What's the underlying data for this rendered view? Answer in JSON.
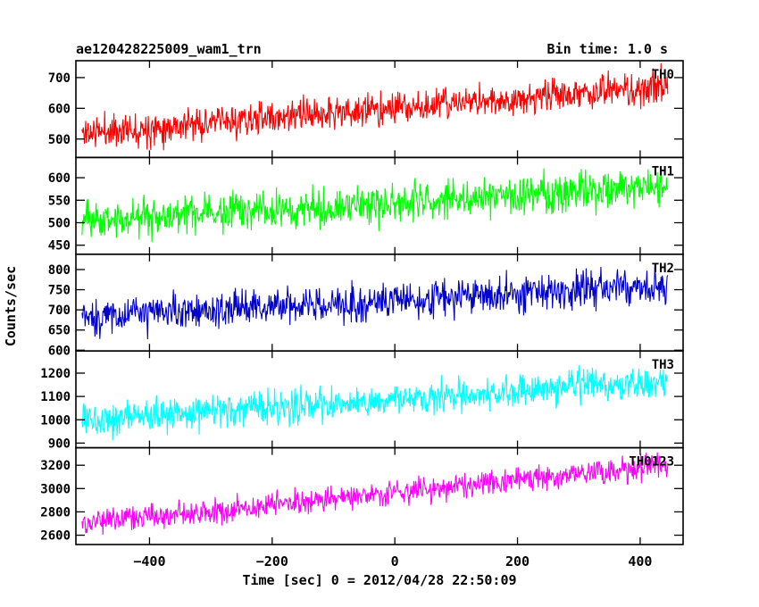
{
  "header": {
    "title": "ae120428225009_wam1_trn",
    "bin_time": "Bin time: 1.0 s"
  },
  "chart_data": {
    "type": "line",
    "xlabel": "Time [sec] 0 = 2012/04/28 22:50:09",
    "ylabel": "Counts/sec",
    "xlim": [
      -520,
      470
    ],
    "x_range_data": [
      -510,
      445
    ],
    "x_step": 1.0,
    "x_ticks": [
      -400,
      -200,
      0,
      200,
      400
    ],
    "x_tick_labels": [
      "−400",
      "−200",
      "0",
      "200",
      "400"
    ],
    "panels": [
      {
        "name": "TH0",
        "color": "#ff0000",
        "ylim": [
          440,
          755
        ],
        "y_ticks": [
          500,
          600,
          700
        ],
        "y_tick_labels": [
          "500",
          "600",
          "700"
        ],
        "trend_start": 520,
        "trend_end": 670,
        "noise": 38,
        "seed": 11
      },
      {
        "name": "TH1",
        "color": "#00ff00",
        "ylim": [
          430,
          645
        ],
        "y_ticks": [
          450,
          500,
          550,
          600
        ],
        "y_tick_labels": [
          "450",
          "500",
          "550",
          "600"
        ],
        "trend_start": 505,
        "trend_end": 580,
        "noise": 30,
        "seed": 23
      },
      {
        "name": "TH2",
        "color": "#0000cc",
        "ylim": [
          598,
          838
        ],
        "y_ticks": [
          600,
          650,
          700,
          750,
          800
        ],
        "y_tick_labels": [
          "600",
          "650",
          "700",
          "750",
          "800"
        ],
        "trend_start": 682,
        "trend_end": 760,
        "noise": 32,
        "seed": 37
      },
      {
        "name": "TH3",
        "color": "#00ffff",
        "ylim": [
          880,
          1295
        ],
        "y_ticks": [
          900,
          1000,
          1100,
          1200
        ],
        "y_tick_labels": [
          "900",
          "1000",
          "1100",
          "1200"
        ],
        "trend_start": 1000,
        "trend_end": 1160,
        "noise": 50,
        "seed": 53
      },
      {
        "name": "TH0123",
        "color": "#ff00ff",
        "ylim": [
          2520,
          3350
        ],
        "y_ticks": [
          2600,
          2800,
          3000,
          3200
        ],
        "y_tick_labels": [
          "2600",
          "2800",
          "3000",
          "3200"
        ],
        "trend_start": 2700,
        "trend_end": 3200,
        "noise": 75,
        "seed": 71
      }
    ]
  }
}
